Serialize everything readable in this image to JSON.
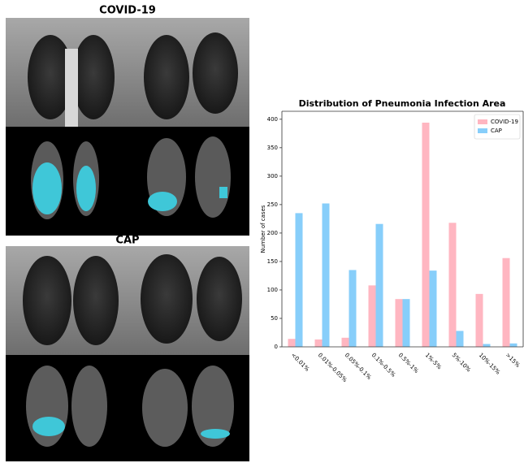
{
  "panels": [
    {
      "label": "COVID-19"
    },
    {
      "label": "CAP"
    }
  ],
  "chart_data": {
    "type": "bar",
    "title": "Distribution of Pneumonia Infection Area",
    "y_label": "Number of cases",
    "categories": [
      "<0.01%",
      "0.01%-0.05%",
      "0.05%-0.1%",
      "0.1%-0.5%",
      "0.5%-1%",
      "1%-5%",
      "5%-10%",
      "10%-15%",
      ">15%"
    ],
    "series": [
      {
        "name": "COVID-19",
        "color": "#ffb6c1",
        "values": [
          14,
          13,
          16,
          108,
          84,
          394,
          218,
          93,
          156
        ]
      },
      {
        "name": "CAP",
        "color": "#87cefa",
        "values": [
          235,
          252,
          135,
          216,
          84,
          134,
          28,
          5,
          6
        ]
      }
    ],
    "ylim": [
      0,
      414
    ],
    "yticks": [
      0,
      50,
      100,
      150,
      200,
      250,
      300,
      350,
      400
    ],
    "legend": "upper right",
    "grid": false
  }
}
